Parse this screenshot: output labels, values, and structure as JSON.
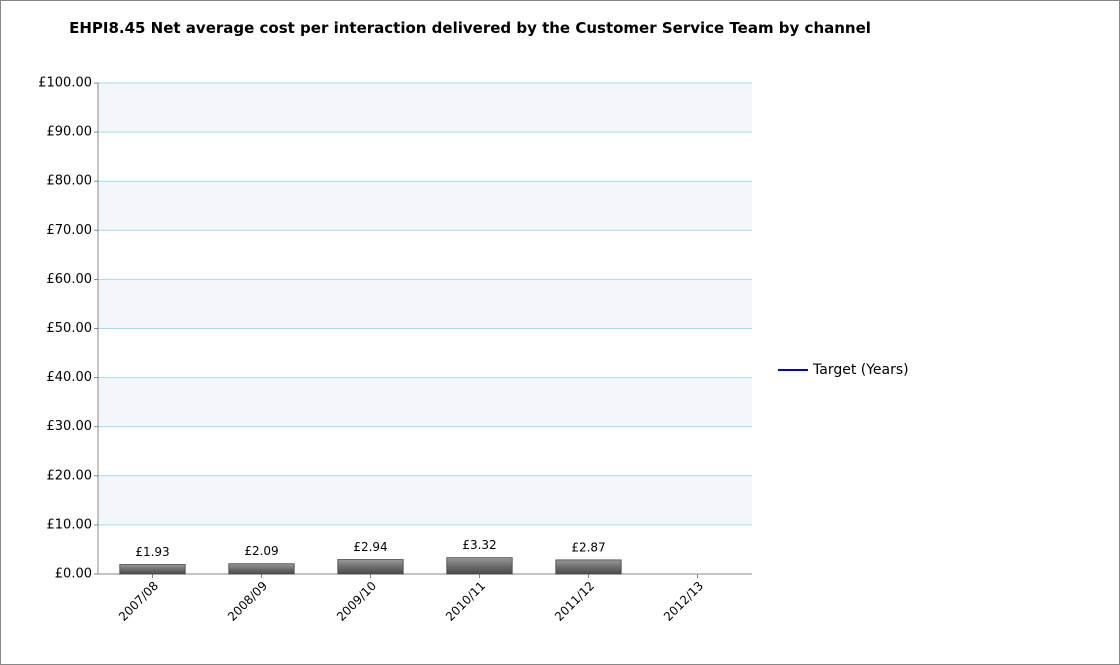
{
  "chart_data": {
    "type": "bar",
    "title": "EHPI8.45 Net average cost per interaction delivered by the Customer Service Team by channel",
    "categories": [
      "2007/08",
      "2008/09",
      "2009/10",
      "2010/11",
      "2011/12",
      "2012/13"
    ],
    "values": [
      1.93,
      2.09,
      2.94,
      3.32,
      2.87,
      null
    ],
    "value_labels": [
      "£1.93",
      "£2.09",
      "£2.94",
      "£3.32",
      "£2.87",
      null
    ],
    "color": "#707070",
    "series": [
      {
        "name": "Target (Years)",
        "color": "#0000cc",
        "values": [
          null,
          null,
          null,
          null,
          null,
          null
        ]
      }
    ],
    "ylim": [
      0,
      100
    ],
    "yticks": [
      {
        "value": 0,
        "label": "£0.00"
      },
      {
        "value": 10,
        "label": "£10.00"
      },
      {
        "value": 20,
        "label": "£20.00"
      },
      {
        "value": 30,
        "label": "£30.00"
      },
      {
        "value": 40,
        "label": "£40.00"
      },
      {
        "value": 50,
        "label": "£50.00"
      },
      {
        "value": 60,
        "label": "£60.00"
      },
      {
        "value": 70,
        "label": "£70.00"
      },
      {
        "value": 80,
        "label": "£80.00"
      },
      {
        "value": 90,
        "label": "£90.00"
      },
      {
        "value": 100,
        "label": "£100.00"
      }
    ],
    "grid": true,
    "legend": "right"
  }
}
